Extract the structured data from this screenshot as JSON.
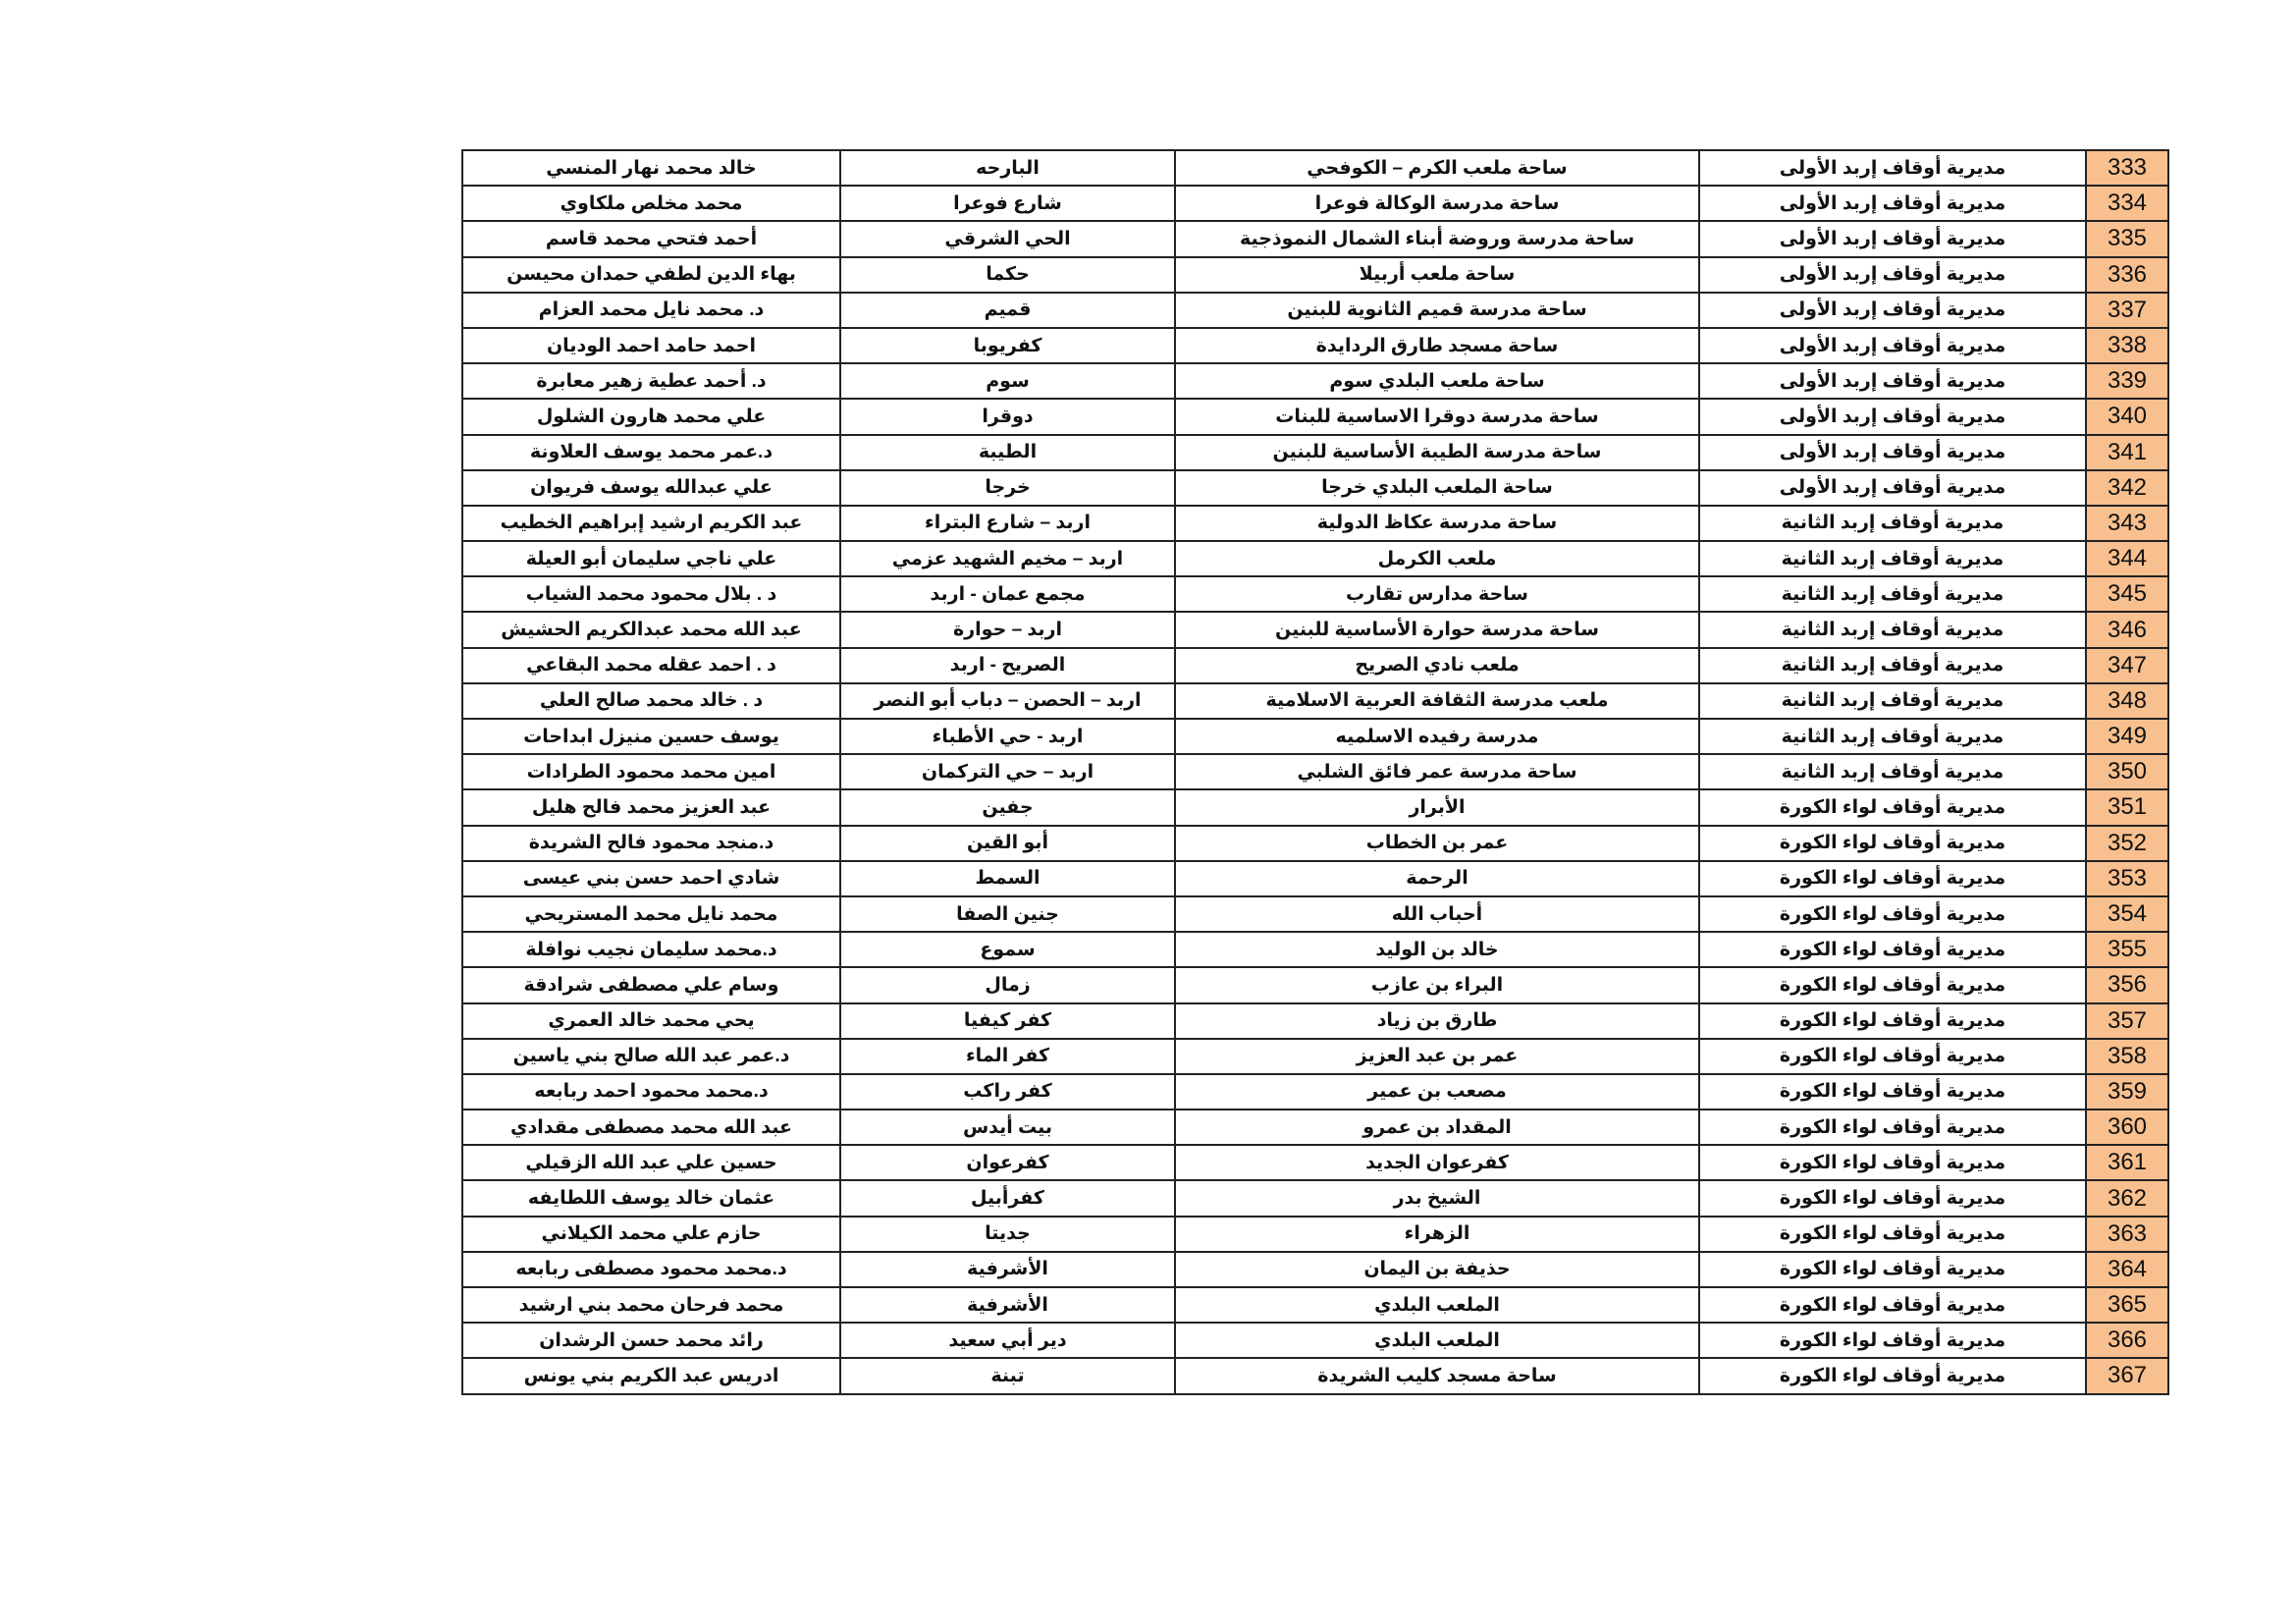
{
  "colors": {
    "number_cell_bg": "#F8C08E",
    "border": "#222222"
  },
  "rows": [
    {
      "no": "333",
      "directorate": "مديرية أوقاف إربد الأولى",
      "site": "ساحة ملعب الكرم – الكوفحي",
      "area": "البارحه",
      "imam": "خالد محمد نهار المنسي"
    },
    {
      "no": "334",
      "directorate": "مديرية أوقاف إربد الأولى",
      "site": "ساحة مدرسة الوكالة فوعرا",
      "area": "شارع فوعرا",
      "imam": "محمد مخلص ملكاوي"
    },
    {
      "no": "335",
      "directorate": "مديرية أوقاف إربد الأولى",
      "site": "ساحة مدرسة وروضة أبناء الشمال النموذجية",
      "area": "الحي الشرقي",
      "imam": "أحمد فتحي محمد قاسم"
    },
    {
      "no": "336",
      "directorate": "مديرية أوقاف إربد الأولى",
      "site": "ساحة ملعب أربيلا",
      "area": "حكما",
      "imam": "بهاء الدين لطفي حمدان محيسن"
    },
    {
      "no": "337",
      "directorate": "مديرية أوقاف إربد الأولى",
      "site": "ساحة مدرسة قميم الثانوية للبنين",
      "area": "قميم",
      "imam": "د. محمد نايل محمد العزام"
    },
    {
      "no": "338",
      "directorate": "مديرية أوقاف إربد الأولى",
      "site": "ساحة مسجد طارق الردايدة",
      "area": "كفريوبا",
      "imam": "احمد حامد احمد الوديان"
    },
    {
      "no": "339",
      "directorate": "مديرية أوقاف إربد الأولى",
      "site": "ساحة ملعب البلدي سوم",
      "area": "سوم",
      "imam": "د. أحمد عطية زهير معابرة"
    },
    {
      "no": "340",
      "directorate": "مديرية أوقاف إربد الأولى",
      "site": "ساحة مدرسة دوقرا الاساسية للبنات",
      "area": "دوقرا",
      "imam": "علي محمد هارون الشلول"
    },
    {
      "no": "341",
      "directorate": "مديرية أوقاف إربد الأولى",
      "site": "ساحة مدرسة الطيبة الأساسية للبنين",
      "area": "الطيبة",
      "imam": "د.عمر محمد يوسف العلاونة"
    },
    {
      "no": "342",
      "directorate": "مديرية أوقاف إربد الأولى",
      "site": "ساحة الملعب البلدي خرجا",
      "area": "خرجا",
      "imam": "علي عبدالله يوسف فريوان"
    },
    {
      "no": "343",
      "directorate": "مديرية أوقاف إربد الثانية",
      "site": "ساحة مدرسة عكاظ الدولية",
      "area": "اربد – شارع البتراء",
      "imam": "عبد الكريم ارشيد إبراهيم الخطيب"
    },
    {
      "no": "344",
      "directorate": "مديرية أوقاف إربد الثانية",
      "site": "ملعب الكرمل",
      "area": "اربد – مخيم الشهيد عزمي",
      "imam": "علي ناجي سليمان أبو العيلة"
    },
    {
      "no": "345",
      "directorate": "مديرية أوقاف إربد الثانية",
      "site": "ساحة مدارس تقارب",
      "area": "مجمع عمان - اربد",
      "imam": "د . بلال محمود محمد الشياب"
    },
    {
      "no": "346",
      "directorate": "مديرية أوقاف إربد الثانية",
      "site": "ساحة مدرسة حوارة الأساسية للبنين",
      "area": "اربد – حوارة",
      "imam": "عبد الله محمد عبدالكريم الحشيش"
    },
    {
      "no": "347",
      "directorate": "مديرية أوقاف إربد الثانية",
      "site": "ملعب نادي الصريح",
      "area": "الصريح - اربد",
      "imam": "د . احمد عقله محمد البقاعي"
    },
    {
      "no": "348",
      "directorate": "مديرية أوقاف إربد الثانية",
      "site": "ملعب مدرسة الثقافة العربية الاسلامية",
      "area": "اربد – الحصن – دباب أبو النصر",
      "imam": "د . خالد محمد صالح العلي"
    },
    {
      "no": "349",
      "directorate": "مديرية أوقاف إربد الثانية",
      "site": "مدرسة رفيده الاسلميه",
      "area": "اربد - حي الأطباء",
      "imam": "يوسف حسين منيزل ابداحات"
    },
    {
      "no": "350",
      "directorate": "مديرية أوقاف إربد الثانية",
      "site": "ساحة مدرسة عمر فائق الشلبي",
      "area": "اربد – حي التركمان",
      "imam": "امين محمد محمود الطرادات"
    },
    {
      "no": "351",
      "directorate": "مديرية أوقاف لواء الكورة",
      "site": "الأبرار",
      "area": "جفين",
      "imam": "عبد العزيز محمد فالح هليل"
    },
    {
      "no": "352",
      "directorate": "مديرية أوقاف لواء الكورة",
      "site": "عمر بن الخطاب",
      "area": "أبو القين",
      "imam": "د.منجد محمود فالح الشريدة"
    },
    {
      "no": "353",
      "directorate": "مديرية أوقاف لواء الكورة",
      "site": "الرحمة",
      "area": "السمط",
      "imam": "شادي احمد حسن بني عيسى"
    },
    {
      "no": "354",
      "directorate": "مديرية أوقاف لواء الكورة",
      "site": "أحباب الله",
      "area": "جنين الصفا",
      "imam": "محمد نايل محمد المستريحي"
    },
    {
      "no": "355",
      "directorate": "مديرية أوقاف لواء الكورة",
      "site": "خالد بن الوليد",
      "area": "سموع",
      "imam": "د.محمد سليمان نجيب نوافلة"
    },
    {
      "no": "356",
      "directorate": "مديرية أوقاف لواء الكورة",
      "site": "البراء بن عازب",
      "area": "زمال",
      "imam": "وسام علي مصطفى شرادقة"
    },
    {
      "no": "357",
      "directorate": "مديرية أوقاف لواء الكورة",
      "site": "طارق بن زياد",
      "area": "كفر كيفيا",
      "imam": "يحي محمد خالد العمري"
    },
    {
      "no": "358",
      "directorate": "مديرية أوقاف لواء الكورة",
      "site": "عمر بن عبد العزيز",
      "area": "كفر الماء",
      "imam": "د.عمر عبد الله صالح بني ياسين"
    },
    {
      "no": "359",
      "directorate": "مديرية أوقاف لواء الكورة",
      "site": "مصعب بن عمير",
      "area": "كفر راكب",
      "imam": "د.محمد محمود احمد ربابعه"
    },
    {
      "no": "360",
      "directorate": "مديرية أوقاف لواء الكورة",
      "site": "المقداد بن عمرو",
      "area": "بيت أيدس",
      "imam": "عبد الله محمد مصطفى مقدادي"
    },
    {
      "no": "361",
      "directorate": "مديرية أوقاف لواء الكورة",
      "site": "كفرعوان الجديد",
      "area": "كفرعوان",
      "imam": "حسين علي عبد الله الزقيلي"
    },
    {
      "no": "362",
      "directorate": "مديرية أوقاف لواء الكورة",
      "site": "الشيخ بدر",
      "area": "كفرأبيل",
      "imam": "عثمان خالد يوسف اللطايفه"
    },
    {
      "no": "363",
      "directorate": "مديرية أوقاف لواء الكورة",
      "site": "الزهراء",
      "area": "جديتا",
      "imam": "حازم علي محمد الكيلاني"
    },
    {
      "no": "364",
      "directorate": "مديرية أوقاف لواء الكورة",
      "site": "حذيفة بن اليمان",
      "area": "الأشرفية",
      "imam": "د.محمد محمود مصطفى ربابعه"
    },
    {
      "no": "365",
      "directorate": "مديرية أوقاف لواء الكورة",
      "site": "الملعب البلدي",
      "area": "الأشرفية",
      "imam": "محمد فرحان محمد بني ارشيد"
    },
    {
      "no": "366",
      "directorate": "مديرية أوقاف لواء الكورة",
      "site": "الملعب البلدي",
      "area": "دير أبي سعيد",
      "imam": "رائد محمد حسن الرشدان"
    },
    {
      "no": "367",
      "directorate": "مديرية أوقاف لواء الكورة",
      "site": "ساحة مسجد كليب الشريدة",
      "area": "تبنة",
      "imam": "ادريس عبد الكريم بني يونس"
    }
  ]
}
